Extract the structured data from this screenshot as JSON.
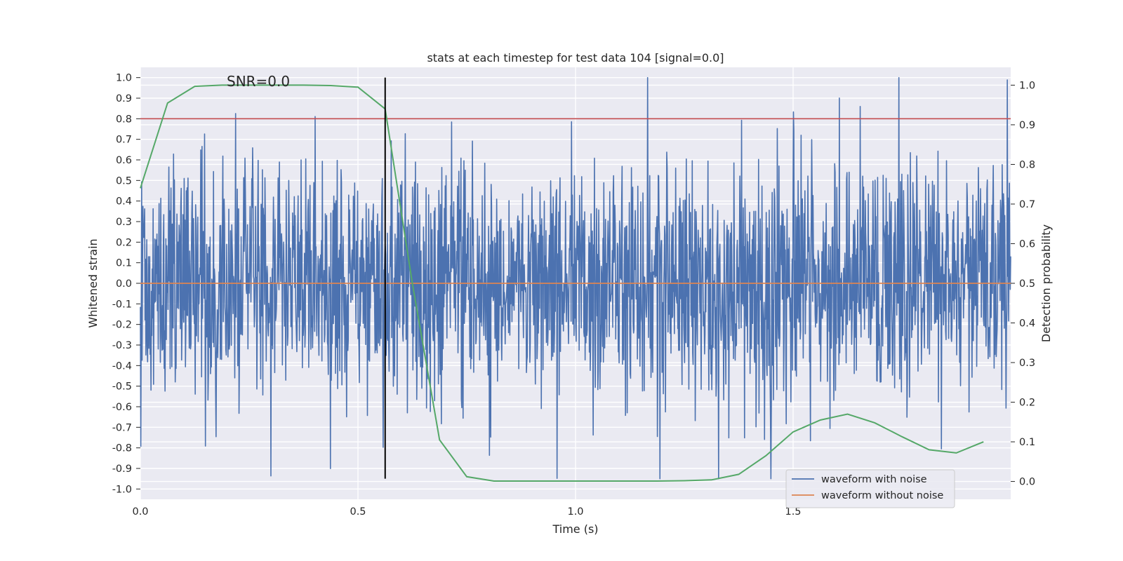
{
  "chart_data": {
    "type": "line",
    "title": "stats at each timestep for test data 104 [signal=0.0]",
    "annotation": "SNR=0.0",
    "xlabel": "Time (s)",
    "ylabel_left": "Whitened strain",
    "ylabel_right": "Detection probability",
    "xlim": [
      0.0,
      2.0
    ],
    "ylim_left": [
      -1.05,
      1.05
    ],
    "ylim_right": [
      -0.045,
      1.045
    ],
    "x_ticks": [
      "0.0",
      "0.5",
      "1.0",
      "1.5"
    ],
    "x_tick_values": [
      0.0,
      0.5,
      1.0,
      1.5
    ],
    "y_left_ticks": [
      "1.0",
      "0.9",
      "0.8",
      "0.7",
      "0.6",
      "0.5",
      "0.4",
      "0.3",
      "0.2",
      "0.1",
      "0.0",
      "-0.1",
      "-0.2",
      "-0.3",
      "-0.4",
      "-0.5",
      "-0.6",
      "-0.7",
      "-0.8",
      "-0.9",
      "-1.0"
    ],
    "y_left_tick_values": [
      1.0,
      0.9,
      0.8,
      0.7,
      0.6,
      0.5,
      0.4,
      0.3,
      0.2,
      0.1,
      0.0,
      -0.1,
      -0.2,
      -0.3,
      -0.4,
      -0.5,
      -0.6,
      -0.7,
      -0.8,
      -0.9,
      -1.0
    ],
    "y_right_ticks": [
      "1.0",
      "0.9",
      "0.8",
      "0.7",
      "0.6",
      "0.5",
      "0.4",
      "0.3",
      "0.2",
      "0.1",
      "0.0"
    ],
    "y_right_tick_values": [
      1.0,
      0.9,
      0.8,
      0.7,
      0.6,
      0.5,
      0.4,
      0.3,
      0.2,
      0.1,
      0.0
    ],
    "grid": true,
    "legend_position": "lower right",
    "series": [
      {
        "name": "waveform with noise",
        "color": "#4c72b0",
        "axis": "left",
        "kind": "noise",
        "sample_count": 2048,
        "approx_std": 0.3,
        "approx_range": [
          -0.95,
          1.0
        ],
        "x_range": [
          0.0,
          2.0
        ]
      },
      {
        "name": "waveform without noise",
        "color": "#dd8452",
        "axis": "left",
        "x": [
          0.0,
          2.0
        ],
        "y": [
          0.0,
          0.0
        ]
      },
      {
        "axis": "right",
        "color": "#55a868",
        "x": [
          0.0,
          0.0625,
          0.125,
          0.1875,
          0.25,
          0.3125,
          0.375,
          0.4375,
          0.5,
          0.5625,
          0.625,
          0.6875,
          0.75,
          0.8125,
          0.875,
          0.9375,
          1.0,
          1.0625,
          1.125,
          1.1875,
          1.25,
          1.3125,
          1.375,
          1.4375,
          1.5,
          1.5625,
          1.625,
          1.6875,
          1.75,
          1.8125,
          1.875,
          1.9375
        ],
        "y": [
          0.74,
          0.955,
          0.997,
          1.0,
          1.0,
          1.0,
          1.0,
          0.999,
          0.995,
          0.94,
          0.5,
          0.105,
          0.012,
          0.001,
          0.001,
          0.001,
          0.001,
          0.001,
          0.001,
          0.001,
          0.002,
          0.004,
          0.018,
          0.065,
          0.125,
          0.155,
          0.17,
          0.148,
          0.113,
          0.08,
          0.072,
          0.1
        ]
      }
    ],
    "threshold": {
      "axis": "left",
      "y": 0.8,
      "color": "#c44e52"
    },
    "marker_line": {
      "x": 0.5625,
      "y_range": [
        -0.95,
        1.0
      ],
      "color": "#000000"
    },
    "colors": {
      "plot_bg": "#eaeaf2",
      "grid": "#ffffff"
    }
  }
}
